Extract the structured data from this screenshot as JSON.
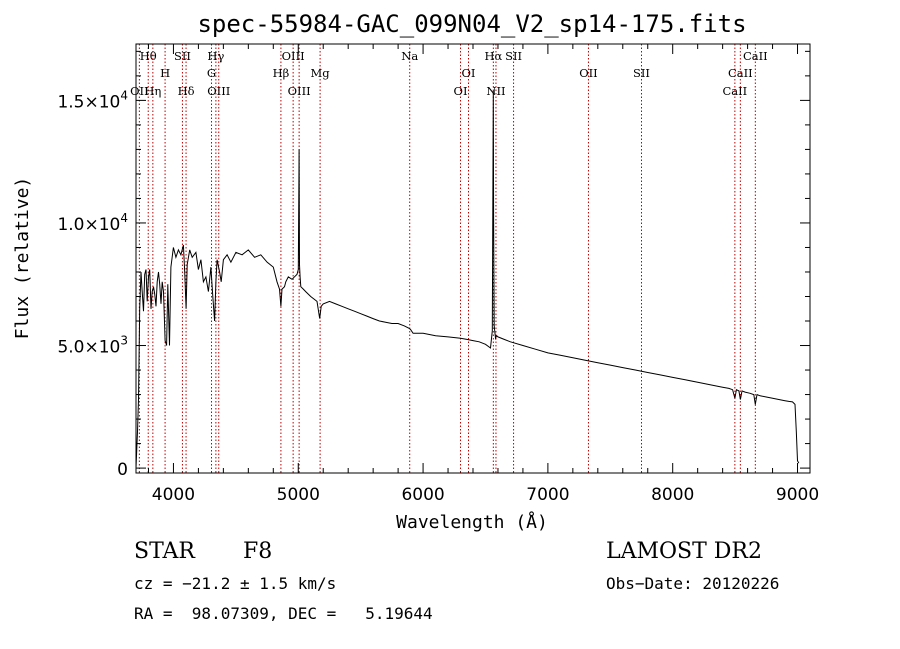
{
  "chart_data": {
    "type": "line",
    "title": "spec-55984-GAC_099N04_V2_sp14-175.fits",
    "xlabel": "Wavelength (Å)",
    "ylabel": "Flux (relative)",
    "xlim": [
      3700,
      9100
    ],
    "ylim": [
      -200,
      17300
    ],
    "x_ticks": [
      4000,
      5000,
      6000,
      7000,
      8000,
      9000
    ],
    "x_tick_labels": [
      "4000",
      "5000",
      "6000",
      "7000",
      "8000",
      "9000"
    ],
    "y_ticks": [
      0,
      5000,
      10000,
      15000
    ],
    "y_tick_labels": [
      {
        "mantissa": "0",
        "exp": ""
      },
      {
        "mantissa": "5.0×10",
        "exp": "3"
      },
      {
        "mantissa": "1.0×10",
        "exp": "4"
      },
      {
        "mantissa": "1.5×10",
        "exp": "4"
      }
    ],
    "series": [
      {
        "x": [
          3700,
          3712,
          3720,
          3730,
          3740,
          3750,
          3760,
          3770,
          3780,
          3790,
          3800,
          3810,
          3820,
          3830,
          3840,
          3850,
          3860,
          3870,
          3880,
          3890,
          3900,
          3910,
          3920,
          3933,
          3945,
          3955,
          3968,
          3980,
          4000,
          4020,
          4040,
          4060,
          4080,
          4090,
          4101,
          4110,
          4130,
          4150,
          4180,
          4200,
          4220,
          4240,
          4260,
          4280,
          4300,
          4315,
          4330,
          4340,
          4350,
          4370,
          4383,
          4400,
          4430,
          4460,
          4500,
          4550,
          4600,
          4650,
          4700,
          4750,
          4800,
          4830,
          4850,
          4861,
          4870,
          4890,
          4900,
          4920,
          4950,
          4990,
          5000,
          5007,
          5010,
          5015,
          5020,
          5040,
          5060,
          5100,
          5150,
          5172,
          5184,
          5200,
          5250,
          5300,
          5350,
          5400,
          5450,
          5500,
          5550,
          5600,
          5650,
          5700,
          5750,
          5800,
          5850,
          5890,
          5900,
          5920,
          6000,
          6100,
          6200,
          6300,
          6350,
          6400,
          6450,
          6500,
          6540,
          6555,
          6563,
          6565,
          6570,
          6580,
          6590,
          6600,
          6650,
          6700,
          6800,
          6900,
          7000,
          7100,
          7200,
          7300,
          7400,
          7500,
          7600,
          7700,
          7800,
          7900,
          8000,
          8100,
          8200,
          8300,
          8400,
          8450,
          8480,
          8498,
          8510,
          8530,
          8542,
          8555,
          8580,
          8620,
          8650,
          8662,
          8675,
          8700,
          8750,
          8800,
          8850,
          8900,
          8930,
          8960,
          8980,
          8990,
          9000,
          9010
        ],
        "y": [
          0,
          1500,
          2800,
          6500,
          8000,
          7200,
          6400,
          7900,
          8100,
          6800,
          7800,
          8100,
          6500,
          7200,
          7400,
          7100,
          6600,
          7600,
          8000,
          7500,
          6700,
          7600,
          7200,
          5200,
          5000,
          7500,
          5000,
          8200,
          9000,
          8600,
          8900,
          8700,
          9100,
          8000,
          6500,
          8300,
          8900,
          8600,
          8800,
          8100,
          8500,
          7600,
          7800,
          7200,
          8200,
          7000,
          6000,
          7600,
          8500,
          8000,
          7600,
          8500,
          8700,
          8400,
          8800,
          8700,
          8900,
          8600,
          8700,
          8400,
          8200,
          7600,
          7300,
          6600,
          7300,
          7400,
          7600,
          7800,
          7700,
          7900,
          8100,
          13000,
          8300,
          7800,
          7400,
          7300,
          7200,
          7000,
          6800,
          6100,
          6600,
          6700,
          6800,
          6700,
          6600,
          6500,
          6400,
          6300,
          6200,
          6100,
          6000,
          5950,
          5900,
          5900,
          5800,
          5700,
          5650,
          5500,
          5500,
          5400,
          5350,
          5300,
          5250,
          5200,
          5150,
          5050,
          4900,
          5600,
          15400,
          10200,
          5800,
          5300,
          5400,
          5350,
          5250,
          5150,
          5000,
          4850,
          4700,
          4600,
          4500,
          4400,
          4300,
          4200,
          4100,
          4000,
          3900,
          3800,
          3700,
          3600,
          3500,
          3400,
          3300,
          3250,
          3200,
          2850,
          3200,
          3150,
          2800,
          3150,
          3100,
          3050,
          3000,
          2600,
          3000,
          2950,
          2900,
          2850,
          2800,
          2750,
          2720,
          2700,
          2600,
          1500,
          300,
          200
        ]
      }
    ],
    "line_markers": [
      {
        "label": "Hθ",
        "x": 3798,
        "row": 0
      },
      {
        "label": "OII",
        "x": 3727,
        "row": 3
      },
      {
        "label": "Hη",
        "x": 3835,
        "row": 3
      },
      {
        "label": "H",
        "x": 3933,
        "row": 1
      },
      {
        "label": "SII",
        "x": 4072,
        "row": 0
      },
      {
        "label": "Hδ",
        "x": 4101,
        "row": 3
      },
      {
        "label": "Hγ",
        "x": 4340,
        "row": 0
      },
      {
        "label": "G",
        "x": 4305,
        "row": 1
      },
      {
        "label": "OIII",
        "x": 4363,
        "row": 3
      },
      {
        "label": "OIII",
        "x": 4959,
        "row": 0
      },
      {
        "label": "Hβ",
        "x": 4861,
        "row": 1
      },
      {
        "label": "OIII",
        "x": 5007,
        "row": 3
      },
      {
        "label": "Mg",
        "x": 5175,
        "row": 1
      },
      {
        "label": "Na",
        "x": 5893,
        "row": 0
      },
      {
        "label": "OI",
        "x": 6364,
        "row": 2
      },
      {
        "label": "OI",
        "x": 6300,
        "row": 3
      },
      {
        "label": "Hα",
        "x": 6563,
        "row": 0
      },
      {
        "label": "SII",
        "x": 6725,
        "row": 0
      },
      {
        "label": "NII",
        "x": 6584,
        "row": 3
      },
      {
        "label": "OII",
        "x": 7325,
        "row": 2
      },
      {
        "label": "SII",
        "x": 7750,
        "row": 2
      },
      {
        "label": "CaII",
        "x": 8662,
        "row": 0
      },
      {
        "label": "CaII",
        "x": 8542,
        "row": 2
      },
      {
        "label": "CaII",
        "x": 8498,
        "row": 3
      }
    ],
    "grid": false,
    "legend": "none"
  },
  "info": {
    "class": "STAR",
    "subclass": "F8",
    "survey": "LAMOST DR2",
    "cz": "cz = −21.2 ± 1.5 km/s",
    "obs_date": "Obs−Date: 20120226",
    "radec": "RA =  98.07309, DEC =   5.19644"
  },
  "colors": {
    "spectrum": "#000000",
    "marker": "#c00000",
    "axis": "#000000"
  }
}
